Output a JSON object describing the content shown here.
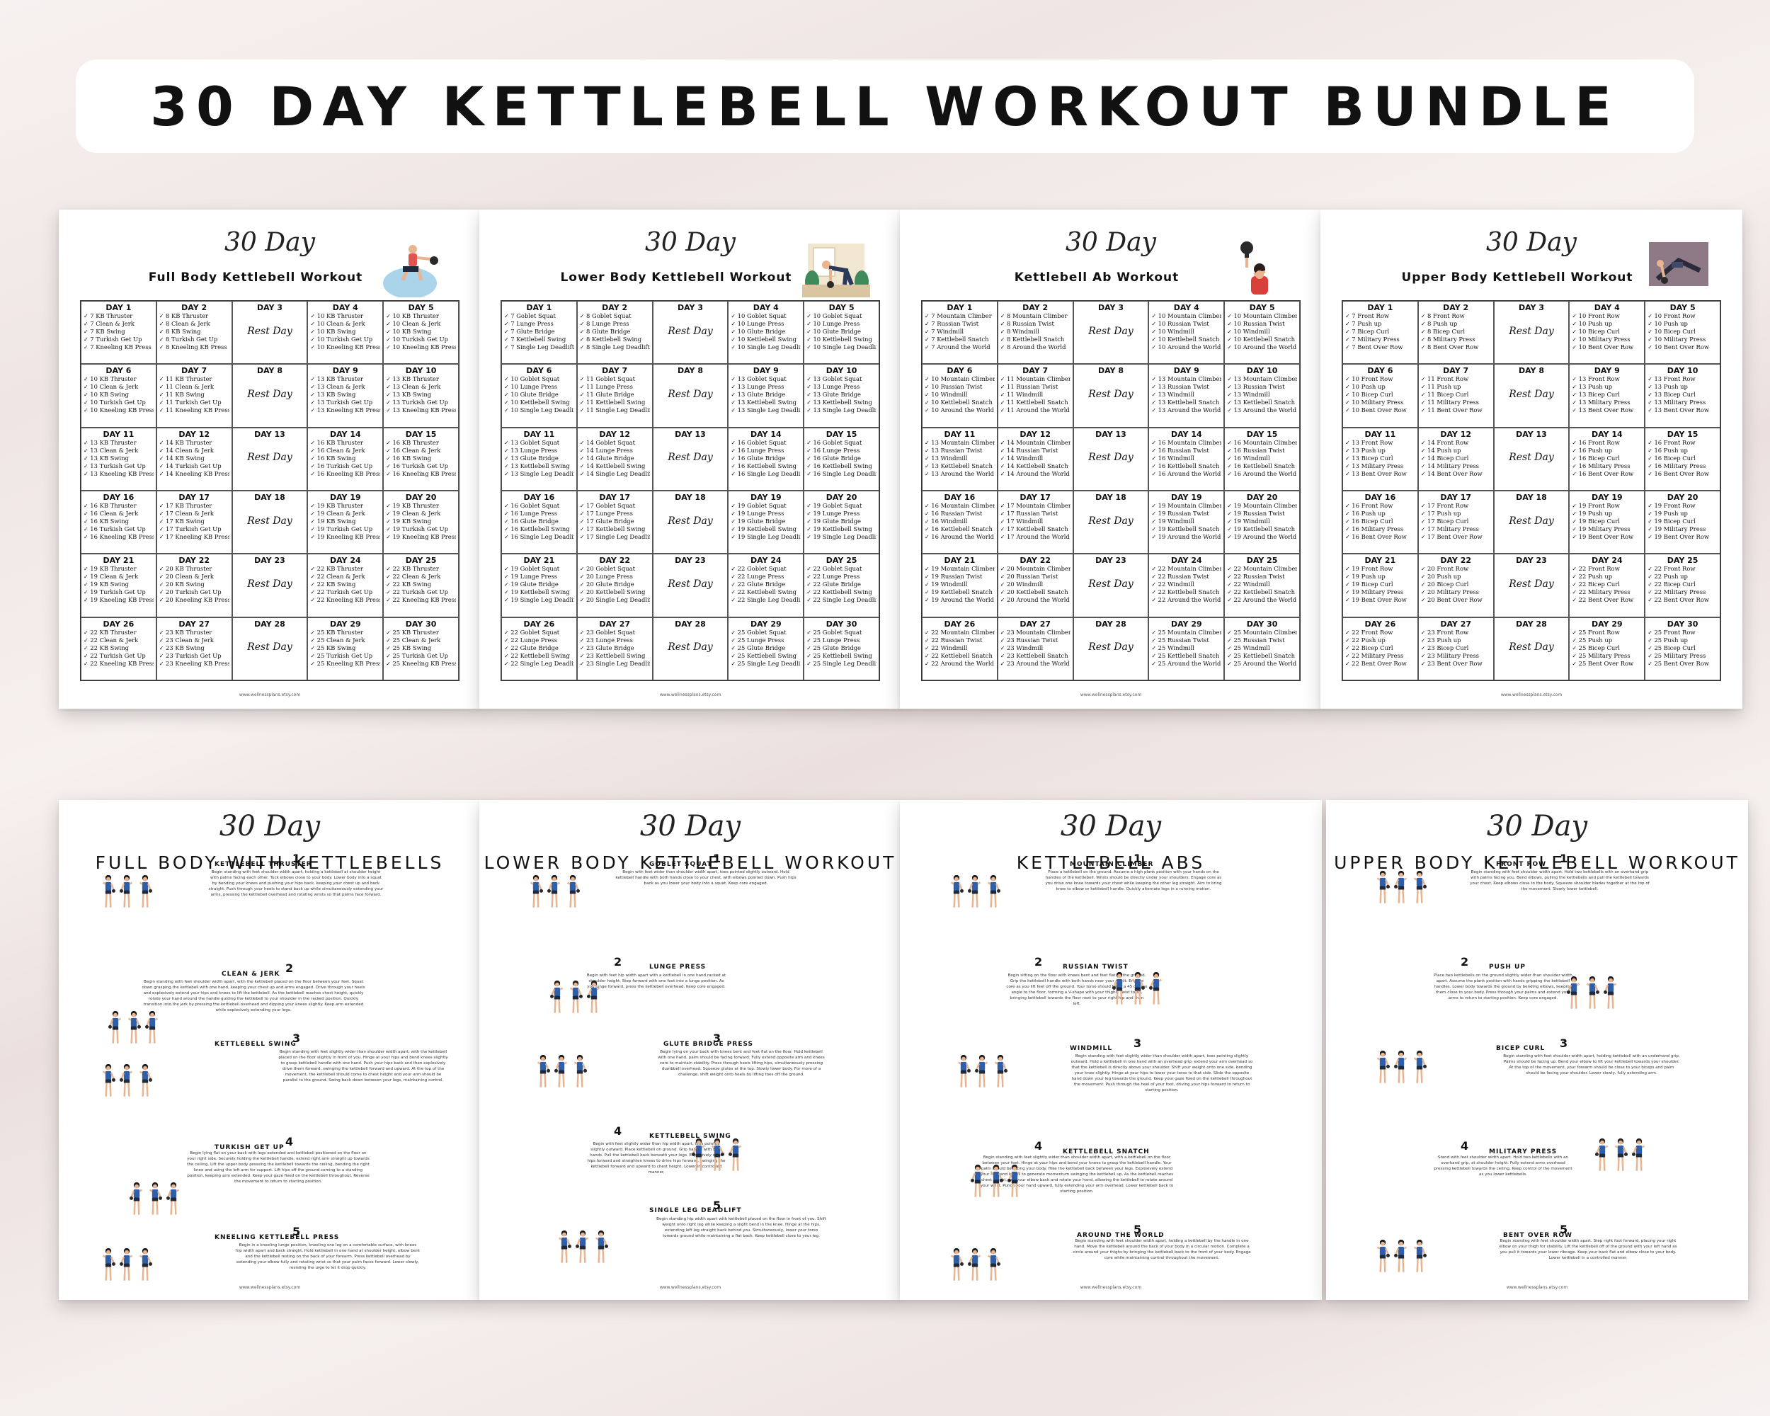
{
  "banner": {
    "title": "30 DAY KETTLEBELL WORKOUT BUNDLE"
  },
  "script_title": "30 Day",
  "rest_label": "Rest Day",
  "footer": "www.wellnessplans.etsy.com",
  "calendars": [
    {
      "title": "Full Body Kettlebell Workout",
      "illustration": "woman-kettlebell-squat-icon",
      "exercises": [
        "KB Thruster",
        "Clean & Jerk",
        "KB Swing",
        "Turkish Get Up",
        "Kneeling KB Press"
      ]
    },
    {
      "title": "Lower Body Kettlebell Workout",
      "illustration": "woman-kettlebell-deadlift-icon",
      "exercises": [
        "Goblet Squat",
        "Lunge Press",
        "Glute Bridge",
        "Kettlebell Swing",
        "Single Leg Deadlift"
      ]
    },
    {
      "title": "Kettlebell Ab Workout",
      "illustration": "woman-kettlebell-overhead-icon",
      "exercises": [
        "Mountain Climber",
        "Russian Twist",
        "Windmill",
        "Kettlebell Snatch",
        "Around the World"
      ]
    },
    {
      "title": "Upper Body Kettlebell Workout",
      "illustration": "man-kettlebell-pushup-icon",
      "exercises": [
        "Front Row",
        "Push up",
        "Bicep Curl",
        "Military Press",
        "Bent Over Row"
      ]
    }
  ],
  "guides": [
    {
      "title": "FULL BODY WITH KETTLEBELLS",
      "items": [
        {
          "num": "1",
          "name": "KETTLEBELL THRUSTER",
          "desc": "Begin standing with feet shoulder width apart, holding a kettlebell at shoulder height with palms facing each other. Tuck elbows close to your body. Lower body into a squat by bending your knees and pushing your hips back, keeping your chest up and back straight. Push through your heels to stand back up while simultaneously extending your arms, pressing the kettlebell overhead and rotating wrists so that palms face forward."
        },
        {
          "num": "2",
          "name": "CLEAN & JERK",
          "desc": "Begin standing with feet shoulder width apart, with the kettlebell placed on the floor between your feet. Squat down grasping the kettlebell with one hand, keeping your chest up and arms engaged. Drive through your heels and explosively extend your hips and knees to lift the kettlebell. As the kettlebell reaches chest height, quickly rotate your hand around the handle guiding the kettlebell to your shoulder in the racked position. Quickly transition into the jerk by pressing the kettlebell overhead and dipping your knees slightly. Keep arm extended while explosively extending your legs."
        },
        {
          "num": "3",
          "name": "KETTLEBELL SWING",
          "desc": "Begin standing with feet slightly wider than shoulder width apart, with the kettlebell placed on the floor slightly in front of you. Hinge at your hips and bend knees slightly to grasp kettlebell handle with one hand. Push your hips back and then explosively drive them forward, swinging the kettlebell forward and upward. At the top of the movement, the kettlebell should come to chest height and your arm should be parallel to the ground. Swing back down between your legs, maintaining control."
        },
        {
          "num": "4",
          "name": "TURKISH GET UP",
          "desc": "Begin lying flat on your back with legs extended and kettlebell positioned on the floor on your right side. Securely holding the kettlebell handle, extend right arm straight up towards the ceiling. Lift the upper body pressing the kettlebell towards the ceiling, bending the right knee and using the left arm for support. Lift hips off the ground coming to a standing position, keeping arm extended. Keep your gaze fixed on the kettlebell throughout. Reverse the movement to return to starting position."
        },
        {
          "num": "5",
          "name": "KNEELING KETTLEBELL PRESS",
          "desc": "Begin in a kneeling lunge position, kneeling one leg on a comfortable surface, with knees hip width apart and back straight. Hold kettlebell in one hand at shoulder height, elbow bent and the kettlebell resting on the back of your forearm. Press kettlebell overhead by extending your elbow fully and rotating wrist so that your palm faces forward. Lower slowly, resisting the urge to let it drop quickly."
        }
      ]
    },
    {
      "title": "LOWER BODY KETTLEBELL WORKOUT",
      "items": [
        {
          "num": "1",
          "name": "GOBLET SQUAT",
          "desc": "Begin with feet wider than shoulder width apart, toes pointed slightly outward. Hold kettlebell handle with both hands close to your chest, with elbows pointed down. Push hips back as you lower your body into a squat. Keep core engaged."
        },
        {
          "num": "2",
          "name": "LUNGE PRESS",
          "desc": "Begin with feet hip width apart with a kettlebell in one hand racked at shoulder height. Step forward with one foot into a lunge position. As you lunge forward, press the kettlebell overhead. Keep core engaged."
        },
        {
          "num": "3",
          "name": "GLUTE BRIDGE PRESS",
          "desc": "Begin lying on your back with knees bent and feet flat on the floor. Hold kettlebell with one hand, palm should be facing forward. Fully extend opposite arm and knees core to maintain stability. Press through heels lifting hips, simultaneously pressing dumbbell overhead. Squeeze glutes at the top. Slowly lower body. For more of a challenge, shift weight onto heels by lifting toes off the ground."
        },
        {
          "num": "4",
          "name": "KETTLEBELL SWING",
          "desc": "Begin with feet slightly wider than hip width apart, toes pointed slightly outward. Place kettlebell on ground. Grip handle with both hands. Pull the kettlebell back beneath your legs. Explosively drive hips forward and straighten knees to drive hips forward, swinging the kettlebell forward and upward to chest height. Lower in controlled manner."
        },
        {
          "num": "5",
          "name": "SINGLE LEG DEADLIFT",
          "desc": "Begin standing hip width apart with kettlebell placed on the floor in front of you. Shift weight onto right leg while keeping a slight bend in the knee. Hinge at the hips, extending left leg straight back behind you. Simultaneously, lower your torso towards ground while maintaining a flat back. Keep kettlebell close to your leg."
        }
      ]
    },
    {
      "title": "KETTLEBELL ABS",
      "items": [
        {
          "num": "1",
          "name": "MOUNTAIN CLIMBER",
          "desc": "Place a kettlebell on the ground. Assume a high plank position with your hands on the handles of the kettlebell. Wrists should be directly under your shoulders. Engage core as you drive one knee towards your chest while keeping the other leg straight. Aim to bring knee to elbow or kettlebell handle. Quickly alternate legs in a running motion."
        },
        {
          "num": "2",
          "name": "RUSSIAN TWIST",
          "desc": "Begin sitting on the floor with knees bent and feet flat on the ground. Grip the kettlebell handle with both hands near your chest. Engage core as you lift feet off the ground. Your torso should be at a 45 degree angle to the floor, forming a V-shape with your thighs. Twist torso, bringing kettlebell towards the floor next to your right hip and then left."
        },
        {
          "num": "3",
          "name": "WINDMILL",
          "desc": "Begin standing with feet slightly wider than shoulder width apart, toes pointing slightly outward. Hold a kettlebell in one hand with an overhead grip, extend your arm overhead so that the kettlebell is directly above your shoulder. Shift your weight onto one side, bending your knee slightly. Hinge at your hips to lower your torso to that side. Slide the opposite hand down your leg towards the ground. Keep your gaze fixed on the kettlebell throughout the movement. Push through the heel of your foot, driving your hips forward to return to starting position."
        },
        {
          "num": "4",
          "name": "KETTLEBELL SNATCH",
          "desc": "Begin standing with feet slightly wider than shoulder width apart, with a kettlebell on the floor between your feet. Hinge at your hips and bend your knees to grasp the kettlebell handle. Your palm should be facing your body. Hike the kettlebell back between your legs. Explosively extend your hips and knees to generate momentum swinging the kettlebell up. As the kettlebell reaches chest height, pull your elbow back and rotate your hand, allowing the kettlebell to rotate around your wrist. Punch your hand upward, fully extending your arm overhead. Lower kettlebell back to starting position."
        },
        {
          "num": "5",
          "name": "AROUND THE WORLD",
          "desc": "Begin standing with feet shoulder width apart, holding a kettlebell by the handle in one hand. Move the kettlebell around the back of your body in a circular motion. Complete a circle around your thighs by bringing the kettlebell back to the front of your body. Engage core while maintaining control throughout the movement."
        }
      ]
    },
    {
      "title": "UPPER BODY KETTLEBELL WORKOUT",
      "items": [
        {
          "num": "1",
          "name": "FRONT ROW",
          "desc": "Begin standing with feet shoulder width apart. Hold two kettlebells with an overhand grip with palms facing you. Bend elbows, pulling the kettlebells and pull the kettlebell towards your chest. Keep elbows close to the body. Squeeze shoulder blades together at the top of the movement. Slowly lower kettlebell."
        },
        {
          "num": "2",
          "name": "PUSH UP",
          "desc": "Place two kettlebells on the ground slightly wider than shoulder width apart. Assume the plank position with hands gripping the kettlebell handles. Lower body towards the ground by bending elbows, keeping them close to your body. Press through your palms and extend your arms to return to starting position. Keep core engaged."
        },
        {
          "num": "3",
          "name": "BICEP CURL",
          "desc": "Begin standing with feet shoulder width apart, holding kettlebell with an underhand grip. Palms should be facing up. Bend your elbow to lift your kettlebell towards your shoulder. At the top of the movement, your forearm should be close to your biceps and palm should be facing your shoulder. Lower slowly, fully extending arm."
        },
        {
          "num": "4",
          "name": "MILITARY PRESS",
          "desc": "Stand with feet shoulder width apart. Hold two kettlebells with an overhand grip, at shoulder height. Fully extend arms overhead pressing kettlebell towards the ceiling. Keep control of the movement as you lower kettlebells."
        },
        {
          "num": "5",
          "name": "BENT OVER ROW",
          "desc": "Begin standing with feet shoulder width apart. Step right foot forward, placing your right elbow on your thigh for stability. Lift the kettlebell off of the ground with your left hand as you pull it towards your lower ribcage. Keep your back flat and elbow close to your body. Lower kettlebell in a controlled manner."
        }
      ]
    }
  ],
  "colors": {
    "accent_blue": "#2f5fa8",
    "skin": "#e9b48f",
    "hair": "#1d1d1d",
    "shorts": "#1f2a3c"
  }
}
